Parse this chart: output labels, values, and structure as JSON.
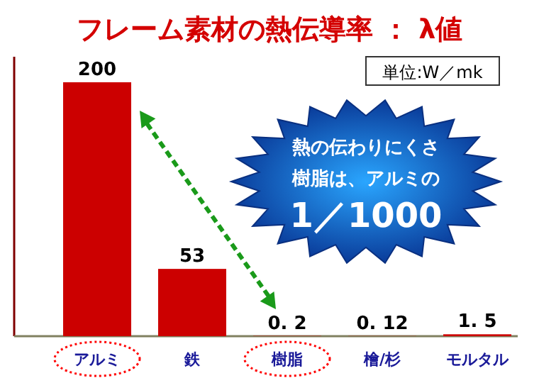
{
  "chart_data": {
    "type": "bar",
    "title": "フレーム素材の熱伝導率 ： λ値",
    "categories": [
      "アルミ",
      "鉄",
      "樹脂",
      "檜/杉",
      "モルタル"
    ],
    "values": [
      200,
      53,
      0.2,
      0.12,
      1.5
    ],
    "value_labels": [
      "200",
      "53",
      "0. 2",
      "0. 12",
      "1. 5"
    ],
    "color": "#cc0000",
    "annotations": [
      "単位:W／mk",
      "熱の伝わりにくさ",
      "樹脂は、アルミの",
      "1／1000"
    ]
  }
}
